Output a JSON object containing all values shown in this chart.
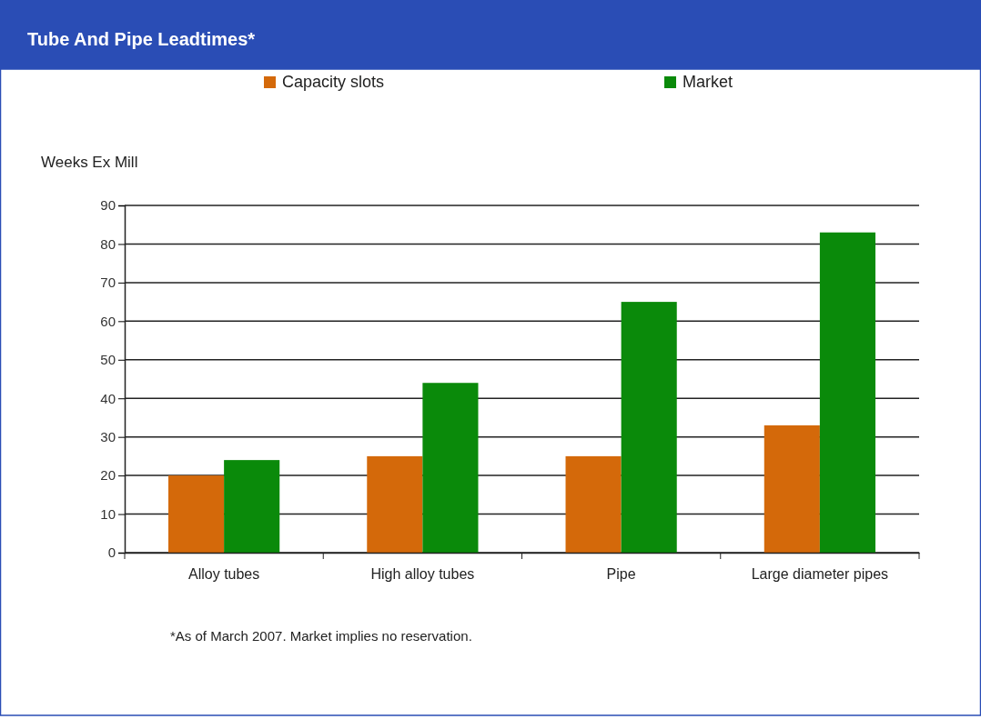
{
  "chart_data": {
    "type": "bar",
    "title": "Tube And Pipe Leadtimes*",
    "ylabel": "Weeks Ex Mill",
    "categories": [
      "Alloy tubes",
      "High alloy tubes",
      "Pipe",
      "Large diameter pipes"
    ],
    "series": [
      {
        "name": "Capacity slots",
        "color": "#d4690a",
        "values": [
          20,
          25,
          25,
          33
        ]
      },
      {
        "name": "Market",
        "color": "#0a8a0a",
        "values": [
          24,
          44,
          65,
          83
        ]
      }
    ],
    "ylim": [
      0,
      90
    ],
    "yticks": [
      0,
      10,
      20,
      30,
      40,
      50,
      60,
      70,
      80,
      90
    ],
    "grid": "y",
    "legend": "top",
    "annotations": [
      "*As of March 2007. Market implies no reservation."
    ]
  }
}
